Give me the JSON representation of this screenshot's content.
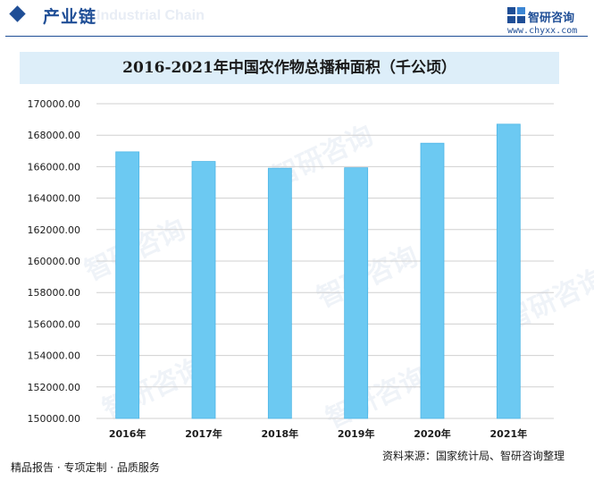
{
  "header": {
    "title": "产业链",
    "watermark": "Industrial Chain"
  },
  "brand": {
    "name": "智研咨询",
    "url": "www.chyxx.com"
  },
  "watermarks": [
    "智研咨询",
    "智研咨询",
    "智研咨询",
    "智研咨询",
    "智研咨询",
    "智研咨询"
  ],
  "footer": {
    "left": "精品报告 · 专项定制 · 品质服务",
    "source": "资料来源：国家统计局、智研咨询整理"
  },
  "colors": {
    "brand": "#1f4e96",
    "bar": "#6cc9f2",
    "bar_edge": "#4fb6e6",
    "title_band": "#ddeef9",
    "grid": "#d0d0d0"
  },
  "chart_data": {
    "type": "bar",
    "title": "2016-2021年中国农作物总播种面积（千公顷）",
    "categories": [
      "2016年",
      "2017年",
      "2018年",
      "2019年",
      "2020年",
      "2021年"
    ],
    "values": [
      166940,
      166330,
      165900,
      165930,
      167490,
      168700
    ],
    "ylim": [
      150000,
      170000
    ],
    "yticks": [
      "150000.00",
      "152000.00",
      "154000.00",
      "156000.00",
      "158000.00",
      "160000.00",
      "162000.00",
      "164000.00",
      "166000.00",
      "168000.00",
      "170000.00"
    ],
    "grid": true,
    "legend": "none"
  }
}
